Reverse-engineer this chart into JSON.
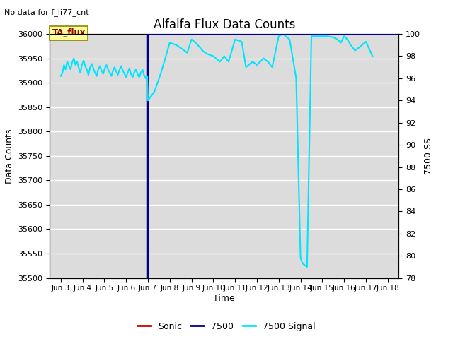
{
  "title": "Alfalfa Flux Data Counts",
  "top_left_text": "No data for f_li77_cnt",
  "annotation_text": "TA_flux",
  "ylabel_left": "Data Counts",
  "ylabel_right": "7500 SS",
  "xlabel": "Time",
  "ylim_left": [
    35500,
    36000
  ],
  "ylim_right": [
    78,
    100
  ],
  "bg_color": "#dcdcdc",
  "line_7500_color": "#00008b",
  "line_signal_color": "#00e5ff",
  "line_sonic_color": "#cc0000",
  "x_tick_labels": [
    "Jun 3",
    "Jun 4",
    "Jun 5",
    "Jun 6",
    "Jun 7",
    "Jun 8",
    "Jun 9",
    "Jun 10",
    "Jun 11",
    "Jun 12",
    "Jun 13",
    "Jun 14",
    "Jun 15",
    "Jun 16",
    "Jun 17",
    "Jun 18"
  ],
  "x_tick_positions": [
    3,
    4,
    5,
    6,
    7,
    8,
    9,
    10,
    11,
    12,
    13,
    14,
    15,
    16,
    17,
    18
  ],
  "x_range": [
    2.5,
    18.5
  ],
  "signal_x": [
    3.0,
    3.08,
    3.15,
    3.22,
    3.3,
    3.38,
    3.45,
    3.52,
    3.6,
    3.68,
    3.75,
    3.82,
    3.9,
    3.97,
    4.05,
    4.12,
    4.2,
    4.27,
    4.35,
    4.42,
    4.5,
    4.57,
    4.65,
    4.72,
    4.8,
    4.87,
    4.95,
    5.02,
    5.1,
    5.17,
    5.25,
    5.32,
    5.4,
    5.47,
    5.55,
    5.62,
    5.7,
    5.77,
    5.85,
    5.92,
    6.0,
    6.07,
    6.15,
    6.22,
    6.3,
    6.37,
    6.45,
    6.52,
    6.6,
    6.67,
    6.75,
    6.82,
    6.9,
    6.97,
    7.0,
    7.3,
    7.6,
    8.0,
    8.3,
    8.6,
    8.8,
    9.0,
    9.2,
    9.5,
    9.7,
    10.0,
    10.3,
    10.5,
    10.7,
    11.0,
    11.3,
    11.5,
    11.8,
    12.0,
    12.3,
    12.5,
    12.7,
    13.0,
    13.2,
    13.5,
    13.8,
    14.0,
    14.1,
    14.3,
    14.5,
    15.0,
    15.2,
    15.5,
    15.7,
    15.85,
    16.0,
    16.15,
    16.3,
    16.5,
    16.7,
    17.0,
    17.3
  ],
  "signal_y": [
    96.2,
    96.5,
    97.2,
    96.8,
    97.5,
    97.1,
    96.8,
    97.4,
    97.8,
    97.2,
    97.5,
    97.0,
    96.5,
    97.2,
    97.6,
    97.1,
    96.8,
    96.3,
    97.0,
    97.3,
    96.9,
    96.5,
    96.2,
    96.8,
    97.1,
    96.7,
    96.4,
    96.9,
    97.2,
    96.8,
    96.5,
    96.2,
    96.7,
    97.0,
    96.6,
    96.3,
    96.8,
    97.1,
    96.7,
    96.4,
    96.1,
    96.5,
    96.9,
    96.4,
    96.1,
    96.5,
    96.8,
    96.4,
    96.1,
    96.5,
    96.8,
    96.3,
    96.0,
    96.2,
    94.0,
    94.8,
    96.5,
    99.2,
    99.0,
    98.6,
    98.3,
    99.5,
    99.2,
    98.5,
    98.2,
    98.0,
    97.5,
    98.0,
    97.5,
    99.5,
    99.3,
    97.0,
    97.5,
    97.2,
    97.8,
    97.5,
    97.0,
    99.8,
    100.0,
    99.5,
    96.0,
    79.8,
    79.3,
    79.0,
    99.8,
    99.8,
    99.8,
    99.7,
    99.5,
    99.2,
    99.8,
    99.5,
    99.0,
    98.5,
    98.8,
    99.3,
    98.0
  ],
  "horizontal_7500_x_start": 6.97,
  "horizontal_7500_x_end": 18.5,
  "horizontal_7500_y_right": 100.0,
  "v7500_x": 6.97,
  "yticks_left": [
    35500,
    35550,
    35600,
    35650,
    35700,
    35750,
    35800,
    35850,
    35900,
    35950,
    36000
  ],
  "yticks_right": [
    78,
    80,
    82,
    84,
    86,
    88,
    90,
    92,
    94,
    96,
    98,
    100
  ],
  "annotation_facecolor": "#ffff99",
  "annotation_edgecolor": "#888800",
  "annotation_textcolor": "#990000"
}
